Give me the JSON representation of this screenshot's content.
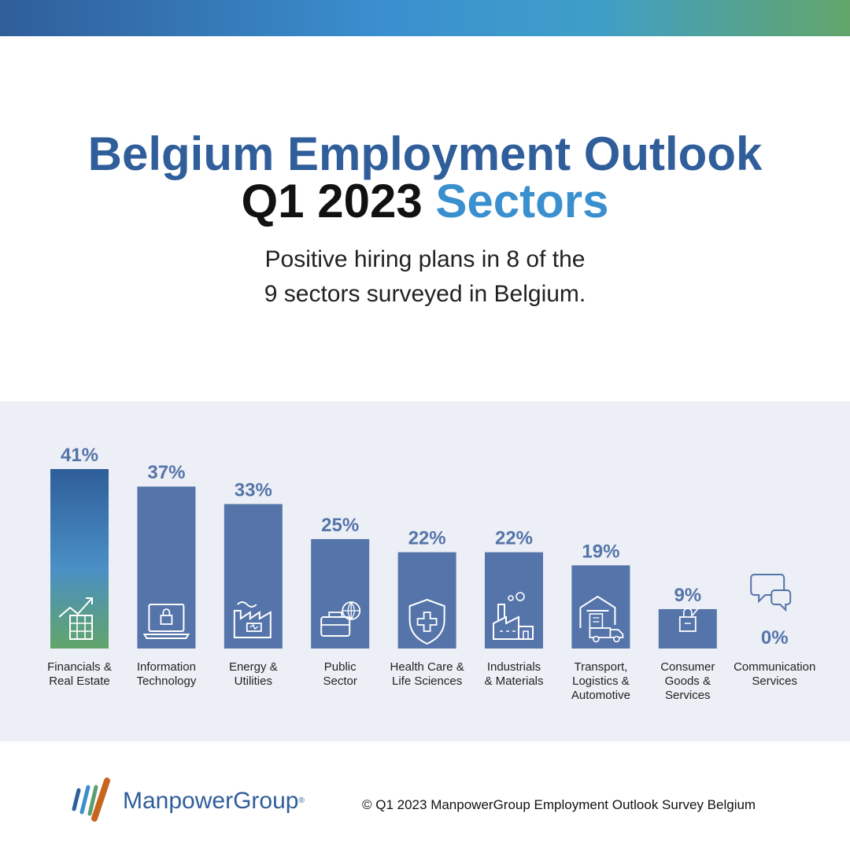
{
  "header": {
    "title_line1": "Belgium Employment Outlook",
    "title_line2_dark": "Q1 2023",
    "title_line2_accent": "Sectors",
    "subtitle_line1": "Positive hiring plans in 8 of the",
    "subtitle_line2": "9 sectors surveyed in Belgium."
  },
  "colors": {
    "bar": "#5574aa",
    "value_label": "#5574aa",
    "title": "#2f5e9a",
    "accent": "#3a8fcf",
    "panel_bg": "#eceff5",
    "highlight_top": "#2f5e9a",
    "highlight_bottom": "#62a56a"
  },
  "chart_data": {
    "type": "bar",
    "title": "",
    "xlabel": "",
    "ylabel": "",
    "ylim": [
      0,
      41
    ],
    "grid": false,
    "value_suffix": "%",
    "categories": [
      [
        "Financials &",
        "Real Estate"
      ],
      [
        "Information",
        "Technology"
      ],
      [
        "Energy &",
        "Utilities"
      ],
      [
        "Public",
        "Sector"
      ],
      [
        "Health Care &",
        "Life Sciences"
      ],
      [
        "Industrials",
        "& Materials"
      ],
      [
        "Transport,",
        "Logistics &",
        "Automotive"
      ],
      [
        "Consumer",
        "Goods &",
        "Services"
      ],
      [
        "Communication",
        "Services"
      ]
    ],
    "values": [
      41,
      37,
      33,
      25,
      22,
      22,
      19,
      9,
      0
    ],
    "icons": [
      "growth-chart-icon",
      "laptop-lock-icon",
      "factory-battery-icon",
      "briefcase-globe-icon",
      "shield-cross-icon",
      "factory-icon",
      "warehouse-truck-icon",
      "shopping-bag-icon",
      "speech-bubbles-icon"
    ],
    "highlight_index": 0
  },
  "footer": {
    "brand": "ManpowerGroup",
    "registered": "®",
    "copyright": "© Q1 2023 ManpowerGroup Employment Outlook Survey Belgium"
  }
}
